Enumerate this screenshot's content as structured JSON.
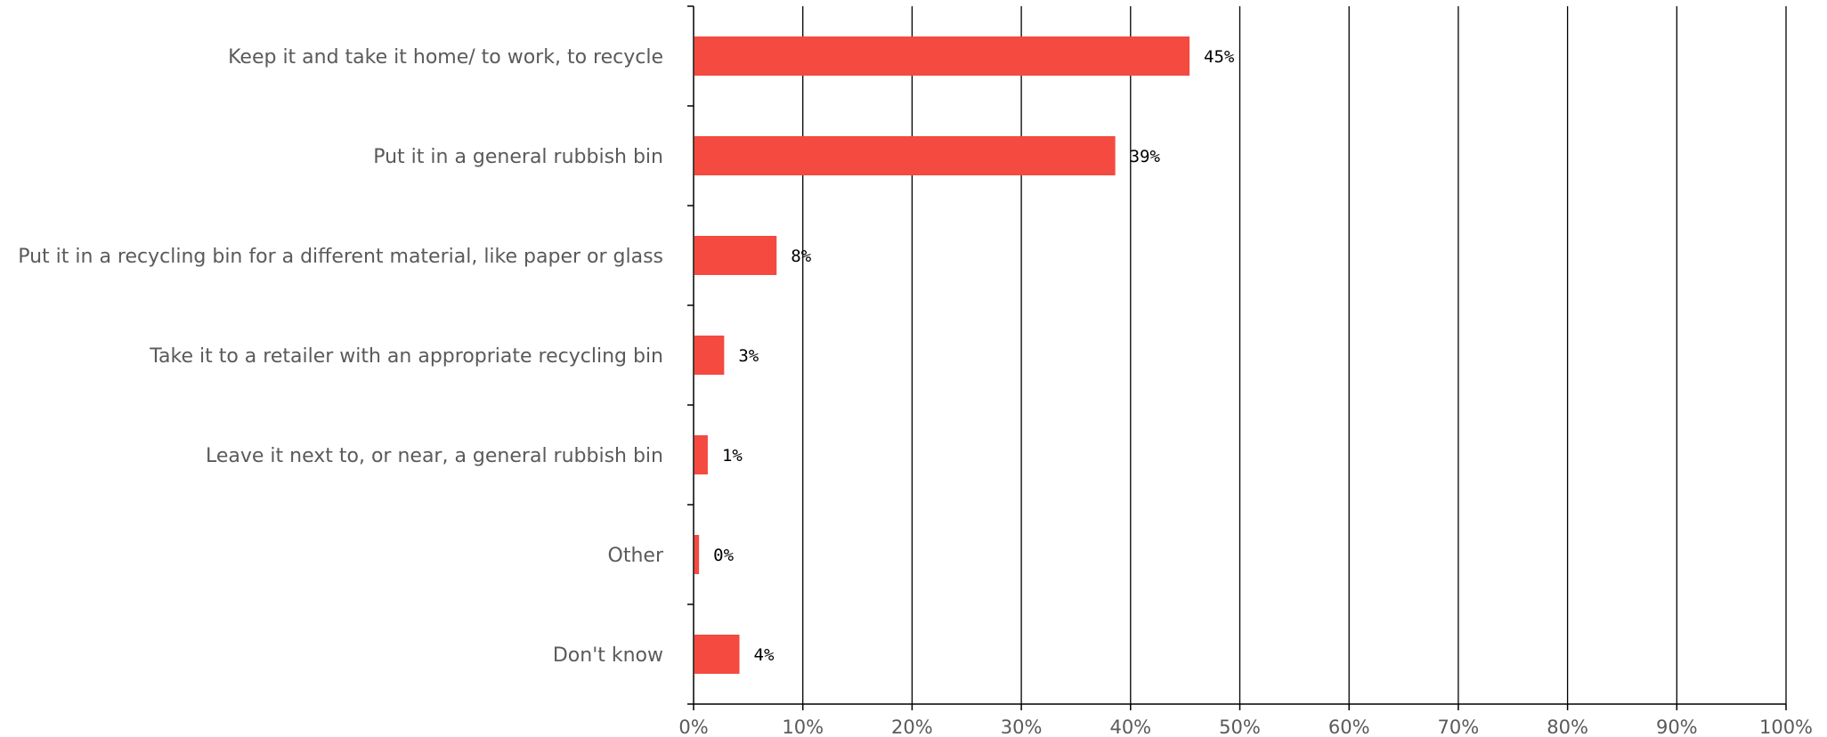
{
  "chart_data": {
    "type": "bar",
    "orientation": "horizontal",
    "categories": [
      "Keep it and take it home/ to work, to recycle",
      "Put it in a general rubbish bin",
      "Put it in a recycling bin for a different material, like paper or glass",
      "Take it to a retailer with an appropriate recycling bin",
      "Leave it next to, or near, a general rubbish bin",
      "Other",
      "Don't know"
    ],
    "values": [
      45.4,
      38.6,
      7.6,
      2.8,
      1.3,
      0.5,
      4.2
    ],
    "data_labels": [
      "45%",
      "39%",
      "8%",
      "3%",
      "1%",
      "0%",
      "4%"
    ],
    "xlim": [
      0,
      100
    ],
    "x_ticks": [
      0,
      10,
      20,
      30,
      40,
      50,
      60,
      70,
      80,
      90,
      100
    ],
    "x_tick_labels": [
      "0%",
      "10%",
      "20%",
      "30%",
      "40%",
      "50%",
      "60%",
      "70%",
      "80%",
      "90%",
      "100%"
    ],
    "title": "",
    "xlabel": "",
    "ylabel": "",
    "grid": "vertical",
    "legend": "none",
    "colors": {
      "bar": "#f44a40",
      "grid": "#000000",
      "axis": "#000000",
      "category_text": "#5a5a5a",
      "tick_text": "#5a5a5a",
      "data_label_text": "#000000"
    }
  }
}
